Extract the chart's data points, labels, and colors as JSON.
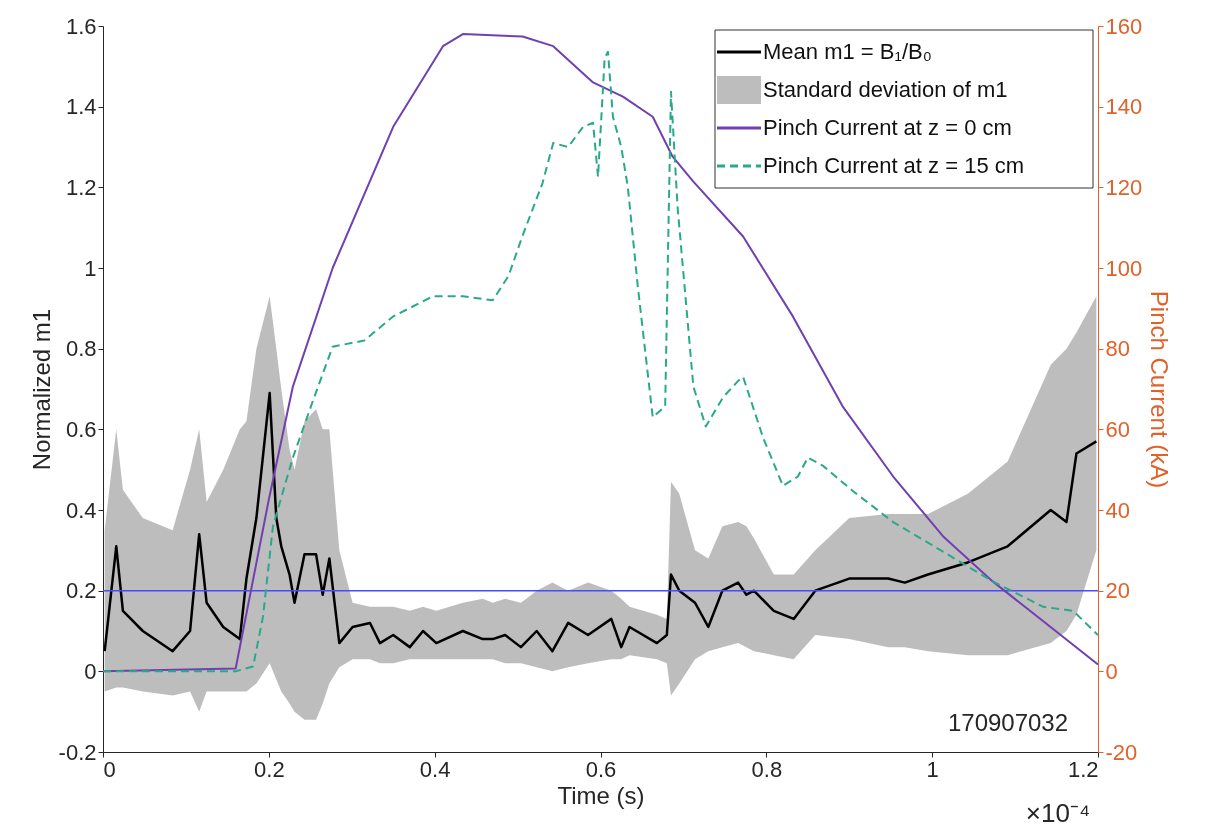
{
  "chart_data": {
    "type": "line",
    "xlabel": "Time (s)",
    "ylabel": "Normalized m1",
    "y2label": "Pinch Current (kA)",
    "xlim": [
      0,
      1.2
    ],
    "xticks": [
      0,
      0.2,
      0.4,
      0.6,
      0.8,
      1,
      1.2
    ],
    "ylim": [
      -0.2,
      1.6
    ],
    "yticks": [
      -0.2,
      0,
      0.2,
      0.4,
      0.6,
      0.8,
      1,
      1.2,
      1.4,
      1.6
    ],
    "y2lim": [
      -20,
      160
    ],
    "y2ticks": [
      -20,
      0,
      20,
      40,
      60,
      80,
      100,
      120,
      140,
      160
    ],
    "grid": false,
    "legend": "top right",
    "annotations": [
      "×10⁻⁴",
      "170907032",
      "Standard deviation of m1"
    ],
    "ref_lines": [
      {
        "axis": "y",
        "value": 0.2,
        "color": "#4a4aff"
      }
    ],
    "series": [
      {
        "name": "Mean m1 = B₁/B₀",
        "color": "#000000",
        "line_style": "solid",
        "x": [
          0.002,
          0.016,
          0.024,
          0.048,
          0.084,
          0.105,
          0.116,
          0.125,
          0.145,
          0.165,
          0.173,
          0.185,
          0.201,
          0.209,
          0.215,
          0.225,
          0.231,
          0.243,
          0.257,
          0.265,
          0.273,
          0.285,
          0.301,
          0.322,
          0.334,
          0.35,
          0.37,
          0.386,
          0.402,
          0.434,
          0.458,
          0.47,
          0.485,
          0.504,
          0.523,
          0.542,
          0.561,
          0.585,
          0.613,
          0.625,
          0.635,
          0.668,
          0.68,
          0.685,
          0.695,
          0.714,
          0.73,
          0.747,
          0.766,
          0.776,
          0.785,
          0.809,
          0.833,
          0.859,
          0.9,
          0.947,
          0.967,
          0.995,
          1.043,
          1.091,
          1.143,
          1.162,
          1.174,
          1.198
        ],
        "values": [
          0.05,
          0.31,
          0.15,
          0.1,
          0.05,
          0.1,
          0.34,
          0.17,
          0.11,
          0.08,
          0.23,
          0.38,
          0.69,
          0.38,
          0.31,
          0.24,
          0.17,
          0.29,
          0.29,
          0.19,
          0.28,
          0.07,
          0.11,
          0.12,
          0.07,
          0.09,
          0.06,
          0.1,
          0.07,
          0.1,
          0.08,
          0.08,
          0.09,
          0.06,
          0.1,
          0.05,
          0.12,
          0.09,
          0.13,
          0.06,
          0.11,
          0.07,
          0.09,
          0.24,
          0.2,
          0.17,
          0.11,
          0.2,
          0.22,
          0.19,
          0.2,
          0.15,
          0.13,
          0.2,
          0.23,
          0.23,
          0.22,
          0.24,
          0.27,
          0.31,
          0.4,
          0.37,
          0.54,
          0.57
        ],
        "upper": [
          0.35,
          0.6,
          0.45,
          0.38,
          0.35,
          0.5,
          0.6,
          0.42,
          0.5,
          0.6,
          0.62,
          0.8,
          0.93,
          0.8,
          0.7,
          0.55,
          0.5,
          0.62,
          0.65,
          0.6,
          0.6,
          0.3,
          0.17,
          0.16,
          0.16,
          0.16,
          0.15,
          0.16,
          0.15,
          0.17,
          0.18,
          0.17,
          0.18,
          0.17,
          0.2,
          0.22,
          0.2,
          0.22,
          0.2,
          0.18,
          0.16,
          0.14,
          0.13,
          0.47,
          0.44,
          0.3,
          0.28,
          0.36,
          0.37,
          0.36,
          0.33,
          0.24,
          0.24,
          0.3,
          0.38,
          0.39,
          0.39,
          0.39,
          0.44,
          0.52,
          0.76,
          0.8,
          0.84,
          0.93
        ],
        "lower": [
          -0.05,
          -0.04,
          -0.04,
          -0.05,
          -0.06,
          -0.05,
          -0.1,
          -0.05,
          -0.05,
          -0.05,
          -0.05,
          -0.03,
          0.02,
          -0.02,
          -0.05,
          -0.08,
          -0.1,
          -0.12,
          -0.12,
          -0.08,
          -0.03,
          0.01,
          0.03,
          0.03,
          0.02,
          0.02,
          0.03,
          0.03,
          0.03,
          0.03,
          0.03,
          0.03,
          0.02,
          0.02,
          0.01,
          0,
          0.01,
          0.02,
          0.03,
          0.03,
          0.04,
          0.03,
          0.02,
          -0.06,
          -0.03,
          0.03,
          0.05,
          0.06,
          0.07,
          0.06,
          0.05,
          0.04,
          0.03,
          0.09,
          0.08,
          0.06,
          0.06,
          0.05,
          0.04,
          0.04,
          0.07,
          0.1,
          0.14,
          0.3
        ]
      },
      {
        "name": "Pinch Current at z = 0 cm",
        "axis": "y2",
        "color": "#7040b0",
        "line_style": "solid",
        "x": [
          0,
          0.16,
          0.2,
          0.229,
          0.277,
          0.35,
          0.41,
          0.434,
          0.506,
          0.543,
          0.591,
          0.627,
          0.663,
          0.687,
          0.712,
          0.772,
          0.832,
          0.892,
          0.953,
          1.013,
          1.073,
          1.134,
          1.2
        ],
        "values": [
          0,
          0.7,
          42.6,
          70.6,
          100,
          135,
          155,
          158,
          157.4,
          155,
          146,
          142.5,
          137.5,
          127.6,
          121.4,
          107.8,
          88,
          65.7,
          48.3,
          33.5,
          22.3,
          12.4,
          1.7
        ]
      },
      {
        "name": "Pinch Current at z = 15 cm",
        "axis": "y2",
        "color": "#2aa98a",
        "line_style": "dashed",
        "x": [
          0,
          0.16,
          0.181,
          0.193,
          0.205,
          0.229,
          0.253,
          0.277,
          0.315,
          0.35,
          0.398,
          0.434,
          0.47,
          0.489,
          0.506,
          0.53,
          0.543,
          0.561,
          0.579,
          0.591,
          0.597,
          0.605,
          0.609,
          0.615,
          0.625,
          0.633,
          0.645,
          0.663,
          0.678,
          0.685,
          0.693,
          0.712,
          0.727,
          0.748,
          0.766,
          0.772,
          0.796,
          0.82,
          0.838,
          0.85,
          0.868,
          0.905,
          0.953,
          1.013,
          1.073,
          1.134,
          1.17,
          1.2
        ],
        "values": [
          0,
          0,
          1.2,
          13.6,
          36,
          53,
          67,
          80.5,
          82,
          88,
          93,
          93,
          92,
          98,
          108,
          121,
          131,
          130,
          135,
          136,
          122.6,
          152,
          153.6,
          137.5,
          130,
          120,
          95.4,
          63,
          65.7,
          143.7,
          115,
          70.6,
          60.7,
          68,
          72,
          73,
          58,
          46,
          48.3,
          53,
          51,
          44.6,
          37,
          29.7,
          22.3,
          16,
          15,
          9
        ]
      }
    ]
  }
}
